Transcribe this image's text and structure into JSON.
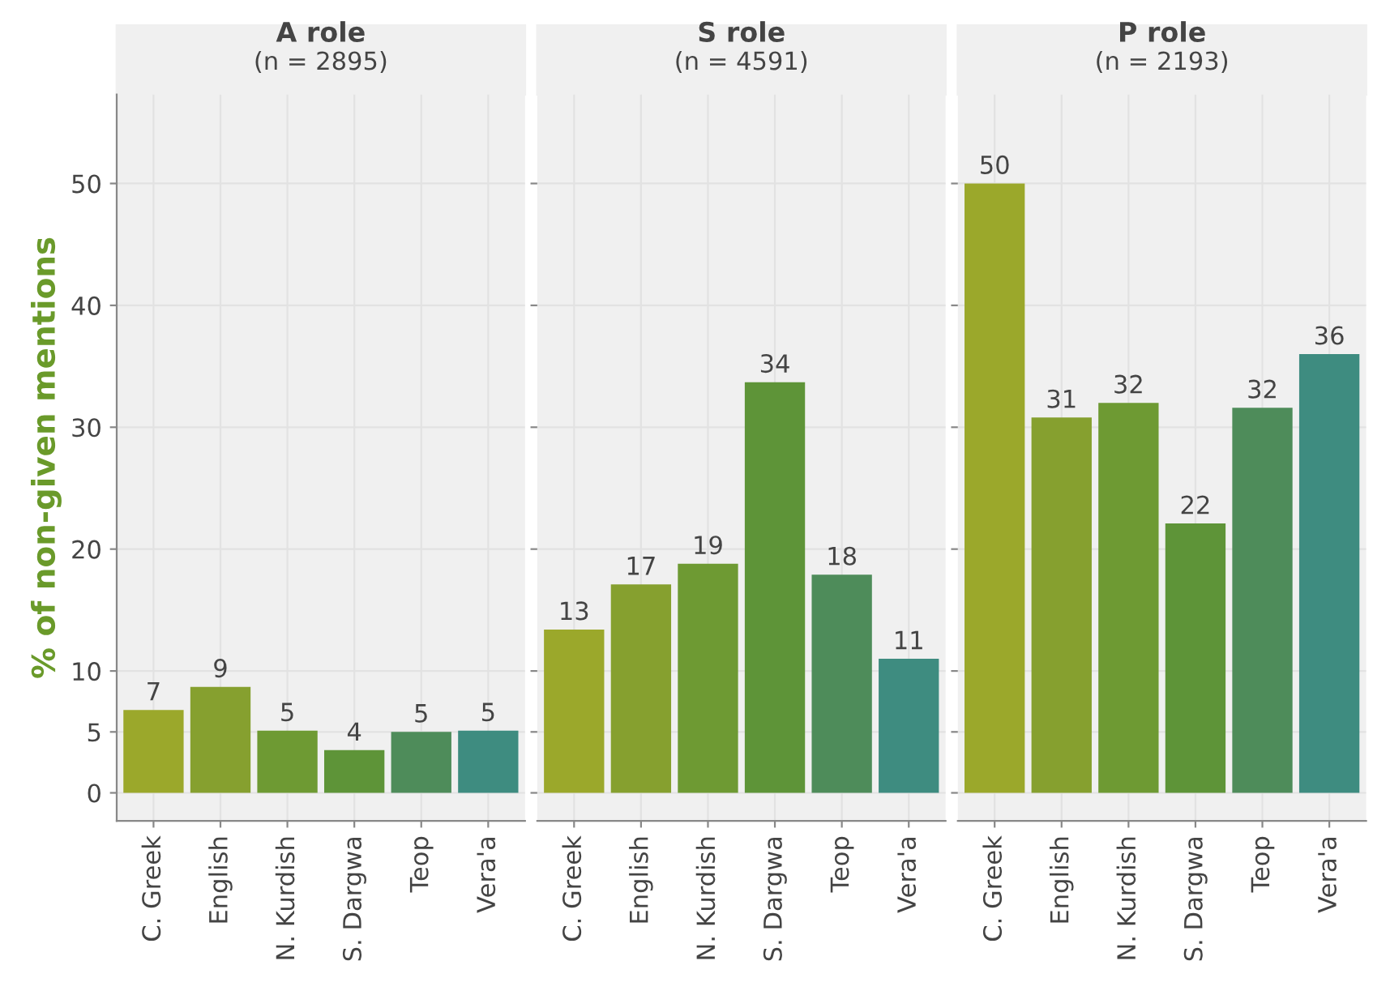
{
  "chart_data": [
    {
      "type": "bar",
      "title": "A role",
      "subtitle": "(n = 2895)",
      "ylabel": "% of non-given mentions",
      "categories": [
        "C. Greek",
        "English",
        "N. Kurdish",
        "S. Dargwa",
        "Teop",
        "Vera'a"
      ],
      "values": [
        6.8,
        8.7,
        5.1,
        3.5,
        5.0,
        5.1
      ],
      "value_labels": [
        "7",
        "9",
        "5",
        "4",
        "5",
        "5"
      ],
      "colors": [
        "#9ba82b",
        "#86a02f",
        "#6e9a33",
        "#5e9438",
        "#4e8c5a",
        "#3e8c80"
      ],
      "ylim": [
        -2.3,
        57.3
      ],
      "yticks": [
        0,
        5,
        10,
        20,
        30,
        40,
        50
      ],
      "grid": true
    },
    {
      "type": "bar",
      "title": "S role",
      "subtitle": "(n = 4591)",
      "categories": [
        "C. Greek",
        "English",
        "N. Kurdish",
        "S. Dargwa",
        "Teop",
        "Vera'a"
      ],
      "values": [
        13.4,
        17.1,
        18.8,
        33.7,
        17.9,
        11.0
      ],
      "value_labels": [
        "13",
        "17",
        "19",
        "34",
        "18",
        "11"
      ],
      "colors": [
        "#9ba82b",
        "#86a02f",
        "#6e9a33",
        "#5e9438",
        "#4e8c5a",
        "#3e8c80"
      ],
      "ylim": [
        -2.3,
        57.3
      ],
      "yticks": [
        0,
        5,
        10,
        20,
        30,
        40,
        50
      ],
      "grid": true,
      "tick_labels": "x"
    },
    {
      "type": "bar",
      "title": "P role",
      "subtitle": "(n = 2193)",
      "categories": [
        "C. Greek",
        "English",
        "N. Kurdish",
        "S. Dargwa",
        "Teop",
        "Vera'a"
      ],
      "values": [
        50.0,
        30.8,
        32.0,
        22.1,
        31.6,
        36.0
      ],
      "value_labels": [
        "50",
        "31",
        "32",
        "22",
        "32",
        "36"
      ],
      "colors": [
        "#9ba82b",
        "#86a02f",
        "#6e9a33",
        "#5e9438",
        "#4e8c5a",
        "#3e8c80"
      ],
      "ylim": [
        -2.3,
        57.3
      ],
      "yticks": [
        0,
        5,
        10,
        20,
        30,
        40,
        50
      ],
      "grid": true,
      "tick_labels": "x"
    }
  ]
}
